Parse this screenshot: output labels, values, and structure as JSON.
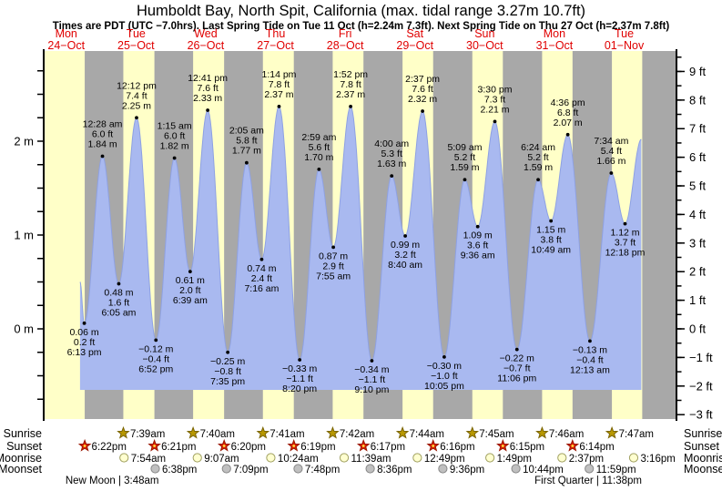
{
  "title": "Humboldt Bay, North Spit, California (max. tidal range 3.27m 10.7ft)",
  "subtitle": "Times are PDT (UTC −7.0hrs). Last Spring Tide on Tue 11 Oct (h=2.24m 7.3ft). Next Spring Tide on Thu 27 Oct (h=2.37m 7.8ft)",
  "chart_data": {
    "type": "area",
    "ylabel_left_unit": "m",
    "ylabel_right_unit": "ft",
    "y_axis_left": {
      "major_values": [
        0,
        1,
        2
      ],
      "major_labels": [
        "0 m",
        "1 m",
        "2 m"
      ],
      "minor_step": 0.25,
      "minor_min": -0.75,
      "minor_max": 2.75
    },
    "y_axis_right": {
      "major_min": -3,
      "major_max": 9,
      "suffix": " ft",
      "minor_step": 0.5,
      "minor_min": -2.5,
      "minor_max": 9.5
    },
    "days": [
      {
        "name": "Mon",
        "date": "24−Oct"
      },
      {
        "name": "Tue",
        "date": "25−Oct"
      },
      {
        "name": "Wed",
        "date": "26−Oct"
      },
      {
        "name": "Thu",
        "date": "27−Oct"
      },
      {
        "name": "Fri",
        "date": "28−Oct"
      },
      {
        "name": "Sat",
        "date": "29−Oct"
      },
      {
        "name": "Sun",
        "date": "30−Oct"
      },
      {
        "name": "Mon",
        "date": "31−Oct"
      },
      {
        "name": "Tue",
        "date": "01−Nov"
      }
    ],
    "tide_events": [
      {
        "day": 0,
        "type": "L",
        "time": "6:13 pm",
        "m": 0.06,
        "m_label": "0.06 m",
        "ft_label": "0.2 ft"
      },
      {
        "day": 1,
        "type": "H",
        "time": "12:28 am",
        "m": 1.84,
        "m_label": "1.84 m",
        "ft_label": "6.0 ft"
      },
      {
        "day": 1,
        "type": "L",
        "time": "6:05 am",
        "m": 0.48,
        "m_label": "0.48 m",
        "ft_label": "1.6 ft"
      },
      {
        "day": 1,
        "type": "H",
        "time": "12:12 pm",
        "m": 2.25,
        "m_label": "2.25 m",
        "ft_label": "7.4 ft"
      },
      {
        "day": 1,
        "type": "L",
        "time": "6:52 pm",
        "m": -0.12,
        "m_label": "−0.12 m",
        "ft_label": "−0.4 ft"
      },
      {
        "day": 2,
        "type": "H",
        "time": "1:15 am",
        "m": 1.82,
        "m_label": "1.82 m",
        "ft_label": "6.0 ft"
      },
      {
        "day": 2,
        "type": "L",
        "time": "6:39 am",
        "m": 0.61,
        "m_label": "0.61 m",
        "ft_label": "2.0 ft"
      },
      {
        "day": 2,
        "type": "H",
        "time": "12:41 pm",
        "m": 2.33,
        "m_label": "2.33 m",
        "ft_label": "7.6 ft"
      },
      {
        "day": 2,
        "type": "L",
        "time": "7:35 pm",
        "m": -0.25,
        "m_label": "−0.25 m",
        "ft_label": "−0.8 ft"
      },
      {
        "day": 3,
        "type": "H",
        "time": "2:05 am",
        "m": 1.77,
        "m_label": "1.77 m",
        "ft_label": "5.8 ft"
      },
      {
        "day": 3,
        "type": "L",
        "time": "7:16 am",
        "m": 0.74,
        "m_label": "0.74 m",
        "ft_label": "2.4 ft"
      },
      {
        "day": 3,
        "type": "H",
        "time": "1:14 pm",
        "m": 2.37,
        "m_label": "2.37 m",
        "ft_label": "7.8 ft"
      },
      {
        "day": 3,
        "type": "L",
        "time": "8:20 pm",
        "m": -0.33,
        "m_label": "−0.33 m",
        "ft_label": "−1.1 ft"
      },
      {
        "day": 4,
        "type": "H",
        "time": "2:59 am",
        "m": 1.7,
        "m_label": "1.70 m",
        "ft_label": "5.6 ft"
      },
      {
        "day": 4,
        "type": "L",
        "time": "7:55 am",
        "m": 0.87,
        "m_label": "0.87 m",
        "ft_label": "2.9 ft"
      },
      {
        "day": 4,
        "type": "H",
        "time": "1:52 pm",
        "m": 2.37,
        "m_label": "2.37 m",
        "ft_label": "7.8 ft"
      },
      {
        "day": 4,
        "type": "L",
        "time": "9:10 pm",
        "m": -0.34,
        "m_label": "−0.34 m",
        "ft_label": "−1.1 ft"
      },
      {
        "day": 5,
        "type": "H",
        "time": "4:00 am",
        "m": 1.63,
        "m_label": "1.63 m",
        "ft_label": "5.3 ft"
      },
      {
        "day": 5,
        "type": "L",
        "time": "8:40 am",
        "m": 0.99,
        "m_label": "0.99 m",
        "ft_label": "3.2 ft"
      },
      {
        "day": 5,
        "type": "H",
        "time": "2:37 pm",
        "m": 2.32,
        "m_label": "2.32 m",
        "ft_label": "7.6 ft"
      },
      {
        "day": 5,
        "type": "L",
        "time": "10:05 pm",
        "m": -0.3,
        "m_label": "−0.30 m",
        "ft_label": "−1.0 ft"
      },
      {
        "day": 6,
        "type": "H",
        "time": "5:09 am",
        "m": 1.59,
        "m_label": "1.59 m",
        "ft_label": "5.2 ft"
      },
      {
        "day": 6,
        "type": "L",
        "time": "9:36 am",
        "m": 1.09,
        "m_label": "1.09 m",
        "ft_label": "3.6 ft"
      },
      {
        "day": 6,
        "type": "H",
        "time": "3:30 pm",
        "m": 2.21,
        "m_label": "2.21 m",
        "ft_label": "7.3 ft"
      },
      {
        "day": 6,
        "type": "L",
        "time": "11:06 pm",
        "m": -0.22,
        "m_label": "−0.22 m",
        "ft_label": "−0.7 ft"
      },
      {
        "day": 7,
        "type": "H",
        "time": "6:24 am",
        "m": 1.59,
        "m_label": "1.59 m",
        "ft_label": "5.2 ft"
      },
      {
        "day": 7,
        "type": "L",
        "time": "10:49 am",
        "m": 1.15,
        "m_label": "1.15 m",
        "ft_label": "3.8 ft"
      },
      {
        "day": 7,
        "type": "H",
        "time": "4:36 pm",
        "m": 2.07,
        "m_label": "2.07 m",
        "ft_label": "6.8 ft"
      },
      {
        "day": 8,
        "type": "L",
        "time": "12:13 am",
        "m": -0.13,
        "m_label": "−0.13 m",
        "ft_label": "−0.4 ft"
      },
      {
        "day": 8,
        "type": "H",
        "time": "7:34 am",
        "m": 1.66,
        "m_label": "1.66 m",
        "ft_label": "5.4 ft"
      },
      {
        "day": 8,
        "type": "L",
        "time": "12:18 pm",
        "m": 1.12,
        "m_label": "1.12 m",
        "ft_label": "3.7 ft"
      }
    ],
    "curve_start": {
      "day": 0,
      "time": "4:45 pm",
      "m": 0.5
    },
    "curve_end": {
      "day": 8,
      "time": "5:55 pm",
      "m": 2.02
    },
    "daylight_bands": [
      {
        "sunrise": null,
        "sunset": "6:22 pm"
      },
      {
        "sunrise": "7:39 am",
        "sunset": "6:21 pm"
      },
      {
        "sunrise": "7:40 am",
        "sunset": "6:20 pm"
      },
      {
        "sunrise": "7:41 am",
        "sunset": "6:19 pm"
      },
      {
        "sunrise": "7:42 am",
        "sunset": "6:17 pm"
      },
      {
        "sunrise": "7:44 am",
        "sunset": "6:16 pm"
      },
      {
        "sunrise": "7:45 am",
        "sunset": "6:15 pm"
      },
      {
        "sunrise": "7:46 am",
        "sunset": "6:14 pm"
      },
      {
        "sunrise": "7:47 am",
        "sunset": "6:13 pm"
      }
    ],
    "colors": {
      "daylight": "#ffffc8",
      "night": "#a8a8a8",
      "tide_fill": "#a9b9f0",
      "tide_stroke": "#8ea1e3",
      "date_red": "#e00000",
      "sunrise_star": "#b89800",
      "sunrise_star_stroke": "#7a6400",
      "sunset_star": "#dd2200",
      "sunset_star_stroke": "#991500",
      "moonrise_fill": "#ffffd0",
      "moonrise_stroke": "#a0a060",
      "moonset_fill": "#c0c0c0",
      "moonset_stroke": "#888888"
    }
  },
  "astro": {
    "left_labels": [
      "Sunrise",
      "Sunset",
      "Moonrise",
      "Moonset"
    ],
    "right_labels": [
      "Sunrise",
      "Sunset",
      "Moonrise",
      "Moonset"
    ],
    "sunrise": [
      {
        "day": 1,
        "time": "7:39am"
      },
      {
        "day": 2,
        "time": "7:40am"
      },
      {
        "day": 3,
        "time": "7:41am"
      },
      {
        "day": 4,
        "time": "7:42am"
      },
      {
        "day": 5,
        "time": "7:44am"
      },
      {
        "day": 6,
        "time": "7:45am"
      },
      {
        "day": 7,
        "time": "7:46am"
      },
      {
        "day": 8,
        "time": "7:47am"
      }
    ],
    "sunset": [
      {
        "day": 0,
        "time": "6:22pm"
      },
      {
        "day": 1,
        "time": "6:21pm"
      },
      {
        "day": 2,
        "time": "6:20pm"
      },
      {
        "day": 3,
        "time": "6:19pm"
      },
      {
        "day": 4,
        "time": "6:17pm"
      },
      {
        "day": 5,
        "time": "6:16pm"
      },
      {
        "day": 6,
        "time": "6:15pm"
      },
      {
        "day": 7,
        "time": "6:14pm"
      }
    ],
    "moonrise": [
      {
        "day": 1,
        "time": "7:54am"
      },
      {
        "day": 2,
        "time": "9:07am"
      },
      {
        "day": 3,
        "time": "10:24am"
      },
      {
        "day": 4,
        "time": "11:39am"
      },
      {
        "day": 5,
        "time": "12:49pm"
      },
      {
        "day": 6,
        "time": "1:49pm"
      },
      {
        "day": 7,
        "time": "2:37pm"
      },
      {
        "day": 8,
        "time": "3:16pm"
      }
    ],
    "moonset": [
      {
        "day": 1,
        "time": "6:38pm"
      },
      {
        "day": 2,
        "time": "7:09pm"
      },
      {
        "day": 3,
        "time": "7:48pm"
      },
      {
        "day": 4,
        "time": "8:36pm"
      },
      {
        "day": 5,
        "time": "9:36pm"
      },
      {
        "day": 6,
        "time": "10:44pm"
      },
      {
        "day": 7,
        "time": "11:59pm"
      }
    ],
    "moon_phases": [
      {
        "day": 1,
        "label": "New Moon",
        "time": "3:48am"
      },
      {
        "day": 7,
        "label": "First Quarter",
        "time": "11:38pm"
      }
    ]
  }
}
